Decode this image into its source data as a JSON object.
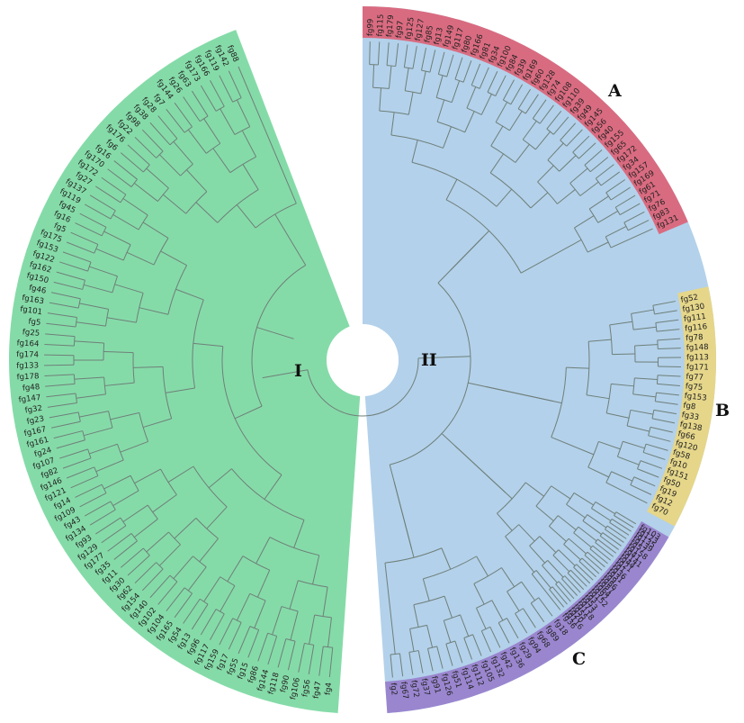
{
  "diagram": {
    "type": "circular-phylogenetic-tree",
    "groups": [
      {
        "label": "I",
        "color": "#85dba8",
        "leaves": [
          "fg4",
          "fg47",
          "fg56",
          "fg106",
          "fg90",
          "fg118",
          "fg144",
          "fg86",
          "fg15",
          "fg55",
          "fg17",
          "fg159",
          "fg117",
          "fg96",
          "fg13",
          "fg54",
          "fg165",
          "fg104",
          "fg102",
          "fg140",
          "fg154",
          "fg62",
          "fg30",
          "fg11",
          "fg35",
          "fg177",
          "fg129",
          "fg93",
          "fg134",
          "fg43",
          "fg109",
          "fg14",
          "fg121",
          "fg146",
          "fg82",
          "fg107",
          "fg24",
          "fg161",
          "fg167",
          "fg23",
          "fg32",
          "fg147",
          "fg48",
          "fg178",
          "fg133",
          "fg174",
          "fg164",
          "fg25",
          "fg5",
          "fg101",
          "fg163",
          "fg46",
          "fg150",
          "fg162",
          "fg122",
          "fg153",
          "fg175",
          "fg5",
          "fg16",
          "fg45",
          "fg119",
          "fg137",
          "fg27",
          "fg172",
          "fg170",
          "fg16",
          "fg6",
          "fg176",
          "fg22",
          "fg98",
          "fg38",
          "fg28",
          "fg7",
          "fg144",
          "fg26",
          "fg63",
          "fg173",
          "fg166",
          "fg119",
          "fg142",
          "fg88"
        ]
      },
      {
        "label": "II",
        "color": "#b3d1ea",
        "leaves": []
      }
    ],
    "clades": [
      {
        "label": "A",
        "color": "#d96b80",
        "leaves": [
          "fg99",
          "fg115",
          "fg179",
          "fg97",
          "fg125",
          "fg127",
          "fg85",
          "fg13",
          "fg149",
          "fg117",
          "fg80",
          "fg166",
          "fg81",
          "fg34",
          "fg100",
          "fg84",
          "fg39",
          "fg169",
          "fg60",
          "fg128",
          "fg74",
          "fg108",
          "fg110",
          "fg39",
          "fg49",
          "fg145",
          "fg56",
          "fg40",
          "fg155",
          "fg65",
          "fg172",
          "fg34",
          "fg157",
          "fg169",
          "fg61",
          "fg71",
          "fg76",
          "fg83",
          "fg131"
        ]
      },
      {
        "label": "B",
        "color": "#e5d68a",
        "leaves": [
          "fg52",
          "fg130",
          "fg111",
          "fg116",
          "fg78",
          "fg148",
          "fg113",
          "fg171",
          "fg77",
          "fg75",
          "fg153",
          "fg8",
          "fg33",
          "fg138",
          "fg66",
          "fg120",
          "fg58",
          "fg10",
          "fg151",
          "fg50",
          "fg19",
          "fg12",
          "fg70"
        ]
      },
      {
        "label": "C",
        "color": "#9a86cf",
        "leaves": [
          "fg103",
          "fg123",
          "fg135",
          "fg139",
          "fg57",
          "fg158",
          "fg41",
          "fg141",
          "fg44",
          "fg21",
          "fg1",
          "fg36",
          "fg31",
          "fg9",
          "fg86",
          "fg87",
          "fg64",
          "fg92",
          "fg152",
          "fg3",
          "fg53",
          "fg73",
          "fg118",
          "fg55",
          "fg20",
          "fg116",
          "fg36"
        ]
      }
    ],
    "clade_II_extra_leaves": [
      "fg18",
      "fg89",
      "fg68",
      "fg94",
      "fg29",
      "fg136",
      "fg42",
      "fg132",
      "fg105",
      "fg112",
      "fg114",
      "fg51",
      "fg126",
      "fg91",
      "fg37",
      "fg72",
      "fg67",
      "fg2"
    ]
  }
}
